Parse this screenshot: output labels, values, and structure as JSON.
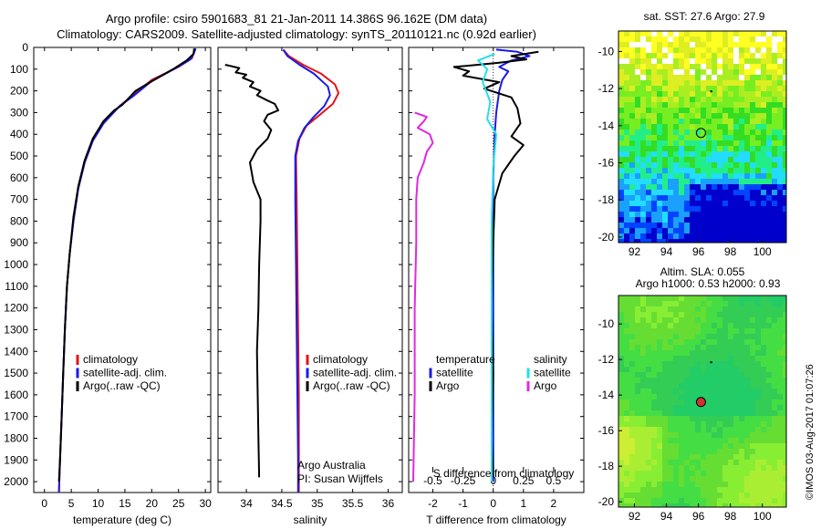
{
  "header": {
    "line1": "Argo profile: csiro 5901683_81 21-Jan-2011 14.386S 96.162E (DM data)",
    "line2": "Climatology: CARS2009. Satellite-adjusted climatology: synTS_20110121.nc (0.92d earlier)"
  },
  "colors": {
    "climatology": "#e0141a",
    "satellite": "#1a1ae6",
    "argo": "#000000",
    "cyan": "#22e0e6",
    "magenta": "#e028e0"
  },
  "depth_axis": {
    "range": [
      0,
      2050
    ],
    "ticks": [
      0,
      100,
      200,
      300,
      400,
      500,
      600,
      700,
      800,
      900,
      1000,
      1100,
      1200,
      1300,
      1400,
      1500,
      1600,
      1700,
      1800,
      1900,
      2000
    ]
  },
  "chart_data": [
    {
      "type": "line",
      "xlabel": "temperature (deg C)",
      "xlim": [
        -2,
        31
      ],
      "xticks": [
        0,
        5,
        10,
        15,
        20,
        25,
        30
      ],
      "ylim": [
        2050,
        0
      ],
      "legend": {
        "placement": "lower-middle",
        "entries": [
          "climatology",
          "satellite-adj. clim.",
          "Argo(..raw -QC)"
        ]
      },
      "series": [
        {
          "name": "climatology",
          "color_key": "climatology",
          "points": [
            [
              28.2,
              5
            ],
            [
              27.9,
              20
            ],
            [
              27.5,
              50
            ],
            [
              25,
              90
            ],
            [
              20,
              150
            ],
            [
              16,
              230
            ],
            [
              14,
              270
            ],
            [
              11,
              350
            ],
            [
              9,
              430
            ],
            [
              7.5,
              530
            ],
            [
              6.3,
              650
            ],
            [
              5.4,
              800
            ],
            [
              4.7,
              950
            ],
            [
              4.2,
              1100
            ],
            [
              3.8,
              1300
            ],
            [
              3.5,
              1500
            ],
            [
              3.2,
              1700
            ],
            [
              2.9,
              1900
            ],
            [
              2.7,
              2050
            ]
          ]
        },
        {
          "name": "satellite-adj. clim.",
          "color_key": "satellite",
          "points": [
            [
              28.2,
              5
            ],
            [
              27.8,
              30
            ],
            [
              27.2,
              55
            ],
            [
              24.5,
              95
            ],
            [
              20,
              155
            ],
            [
              16.5,
              225
            ],
            [
              14,
              270
            ],
            [
              11,
              350
            ],
            [
              9,
              430
            ],
            [
              7.5,
              530
            ],
            [
              6.3,
              650
            ],
            [
              5.4,
              800
            ],
            [
              4.7,
              950
            ],
            [
              4.2,
              1100
            ],
            [
              3.8,
              1300
            ],
            [
              3.5,
              1500
            ],
            [
              3.2,
              1700
            ],
            [
              2.9,
              1900
            ],
            [
              2.7,
              2050
            ]
          ]
        },
        {
          "name": "Argo(..raw -QC)",
          "color_key": "argo",
          "points": [
            [
              27.9,
              5
            ],
            [
              27.8,
              30
            ],
            [
              26.5,
              60
            ],
            [
              24,
              100
            ],
            [
              19,
              170
            ],
            [
              17,
              200
            ],
            [
              14.5,
              265
            ],
            [
              13,
              290
            ],
            [
              11,
              340
            ],
            [
              9,
              420
            ],
            [
              7.5,
              520
            ],
            [
              6.3,
              640
            ],
            [
              5.4,
              780
            ],
            [
              4.7,
              950
            ],
            [
              4.2,
              1100
            ],
            [
              3.8,
              1300
            ],
            [
              3.5,
              1500
            ],
            [
              3.2,
              1700
            ],
            [
              2.9,
              1900
            ],
            [
              2.7,
              2000
            ]
          ]
        }
      ]
    },
    {
      "type": "line",
      "xlabel": "salinity",
      "xlim": [
        33.6,
        36.2
      ],
      "xticks": [
        34,
        34.5,
        35,
        35.5,
        36
      ],
      "xticklabels": [
        "34",
        "34.5",
        "35",
        "35.5",
        "36"
      ],
      "ylim": [
        2050,
        0
      ],
      "legend": {
        "placement": "lower-middle",
        "entries": [
          "climatology",
          "satellite-adj. clim.",
          "Argo(..raw -QC)"
        ]
      },
      "annotations": [
        "Argo Australia",
        "PI: Susan Wijffels"
      ],
      "series": [
        {
          "name": "climatology",
          "color_key": "climatology",
          "points": [
            [
              34.52,
              10
            ],
            [
              34.6,
              40
            ],
            [
              34.8,
              80
            ],
            [
              35.05,
              120
            ],
            [
              35.25,
              170
            ],
            [
              35.3,
              210
            ],
            [
              35.22,
              260
            ],
            [
              35.0,
              320
            ],
            [
              34.85,
              360
            ],
            [
              34.75,
              420
            ],
            [
              34.7,
              500
            ],
            [
              34.71,
              700
            ],
            [
              34.72,
              1000
            ],
            [
              34.73,
              1300
            ],
            [
              34.74,
              1600
            ],
            [
              34.74,
              1900
            ],
            [
              34.74,
              2050
            ]
          ]
        },
        {
          "name": "satellite-adj. clim.",
          "color_key": "satellite",
          "points": [
            [
              34.52,
              10
            ],
            [
              34.58,
              40
            ],
            [
              34.75,
              80
            ],
            [
              34.95,
              120
            ],
            [
              35.15,
              180
            ],
            [
              35.18,
              220
            ],
            [
              35.1,
              270
            ],
            [
              34.95,
              320
            ],
            [
              34.82,
              370
            ],
            [
              34.73,
              430
            ],
            [
              34.69,
              500
            ],
            [
              34.69,
              700
            ],
            [
              34.7,
              1000
            ],
            [
              34.71,
              1300
            ],
            [
              34.72,
              1600
            ],
            [
              34.73,
              1900
            ],
            [
              34.73,
              2050
            ]
          ]
        },
        {
          "name": "Argo(..raw -QC)",
          "color_key": "argo",
          "points": [
            [
              33.7,
              80
            ],
            [
              33.9,
              95
            ],
            [
              33.85,
              115
            ],
            [
              34.0,
              125
            ],
            [
              33.95,
              140
            ],
            [
              34.1,
              160
            ],
            [
              34.05,
              180
            ],
            [
              34.2,
              200
            ],
            [
              34.15,
              220
            ],
            [
              34.3,
              245
            ],
            [
              34.4,
              260
            ],
            [
              34.45,
              290
            ],
            [
              34.3,
              310
            ],
            [
              34.25,
              340
            ],
            [
              34.35,
              380
            ],
            [
              34.3,
              420
            ],
            [
              34.15,
              470
            ],
            [
              34.05,
              530
            ],
            [
              34.1,
              620
            ],
            [
              34.2,
              700
            ],
            [
              34.2,
              800
            ],
            [
              34.18,
              1000
            ],
            [
              34.17,
              1200
            ],
            [
              34.15,
              1400
            ],
            [
              34.16,
              1600
            ],
            [
              34.17,
              1800
            ],
            [
              34.18,
              1980
            ]
          ]
        }
      ]
    },
    {
      "type": "line",
      "xlabel": "T difference from climatology",
      "x2label": "S difference from climatology",
      "xlim": [
        -2.8,
        3.0
      ],
      "xticks": [
        -2,
        -1,
        0,
        1,
        2
      ],
      "xticklabels": [
        "-2",
        "-1",
        "0",
        "1",
        "2"
      ],
      "x2ticks": [
        -2,
        -1,
        0,
        1,
        2
      ],
      "x2ticklabels": [
        "-0.5",
        "-0.25",
        "0",
        "0.25",
        "0.5"
      ],
      "ylim": [
        2050,
        0
      ],
      "legend": {
        "placement": "lower-middle",
        "headers": [
          "temperature",
          "salinity"
        ],
        "entries": [
          "satellite",
          "Argo",
          "satellite",
          "Argo"
        ]
      },
      "series": [
        {
          "name": "satellite",
          "group": "temperature",
          "color_key": "satellite",
          "points": [
            [
              0.1,
              10
            ],
            [
              0.8,
              20
            ],
            [
              1.2,
              40
            ],
            [
              0.6,
              60
            ],
            [
              0.2,
              90
            ],
            [
              0.5,
              110
            ],
            [
              0.3,
              150
            ],
            [
              0.2,
              200
            ],
            [
              0.1,
              300
            ],
            [
              0.05,
              400
            ],
            [
              0.0,
              600
            ],
            [
              0.0,
              1000
            ],
            [
              0.0,
              1500
            ],
            [
              0.0,
              2000
            ]
          ]
        },
        {
          "name": "Argo",
          "group": "temperature",
          "color_key": "argo",
          "points": [
            [
              1.5,
              20
            ],
            [
              0.6,
              40
            ],
            [
              1.1,
              55
            ],
            [
              0.2,
              70
            ],
            [
              -0.5,
              80
            ],
            [
              -1.3,
              90
            ],
            [
              -0.8,
              110
            ],
            [
              -1.0,
              130
            ],
            [
              0.2,
              160
            ],
            [
              -0.3,
              190
            ],
            [
              0.6,
              230
            ],
            [
              0.8,
              280
            ],
            [
              0.9,
              350
            ],
            [
              0.6,
              410
            ],
            [
              1.0,
              450
            ],
            [
              0.7,
              500
            ],
            [
              0.3,
              580
            ],
            [
              0.05,
              700
            ],
            [
              0.0,
              900
            ],
            [
              -0.05,
              1200
            ],
            [
              0.0,
              1500
            ],
            [
              -0.05,
              1800
            ],
            [
              0.0,
              1980
            ]
          ]
        },
        {
          "name": "satellite",
          "group": "salinity",
          "color_key": "cyan",
          "points": [
            [
              0.05,
              30
            ],
            [
              -0.5,
              60
            ],
            [
              -0.2,
              100
            ],
            [
              -0.35,
              160
            ],
            [
              -0.1,
              250
            ],
            [
              -0.2,
              330
            ],
            [
              0.1,
              400
            ],
            [
              0.0,
              550
            ],
            [
              -0.05,
              800
            ],
            [
              -0.05,
              1200
            ],
            [
              -0.05,
              1600
            ],
            [
              -0.05,
              2000
            ]
          ]
        },
        {
          "name": "Argo",
          "group": "salinity",
          "color_key": "magenta",
          "points": [
            [
              -2.6,
              300
            ],
            [
              -2.2,
              320
            ],
            [
              -2.3,
              340
            ],
            [
              -2.5,
              370
            ],
            [
              -2.1,
              400
            ],
            [
              -2.0,
              440
            ],
            [
              -2.2,
              480
            ],
            [
              -2.3,
              530
            ],
            [
              -2.5,
              600
            ],
            [
              -2.55,
              700
            ],
            [
              -2.55,
              900
            ],
            [
              -2.6,
              1200
            ],
            [
              -2.6,
              1600
            ],
            [
              -2.65,
              2000
            ]
          ]
        }
      ]
    }
  ],
  "map_sst": {
    "title": "sat. SST: 27.6 Argo: 27.9",
    "xticks": [
      92,
      94,
      96,
      98,
      100
    ],
    "yticks": [
      -10,
      -12,
      -14,
      -16,
      -18,
      -20
    ],
    "lon_range": [
      91,
      101.5
    ],
    "lat_range": [
      -20.3,
      -8.9
    ],
    "argo_position": [
      96.16,
      -14.39
    ],
    "colors": [
      "#0000cc",
      "#0044ff",
      "#1aa0ff",
      "#22ddff",
      "#22ee88",
      "#33dd22",
      "#77ee22",
      "#aaee22",
      "#ddee22",
      "#ffff22"
    ]
  },
  "map_sla": {
    "title1": "Altim. SLA: 0.055",
    "title2": "Argo h1000: 0.53 h2000: 0.93",
    "xticks": [
      92,
      94,
      96,
      98,
      100
    ],
    "yticks": [
      -10,
      -12,
      -14,
      -16,
      -18,
      -20
    ],
    "lon_range": [
      91,
      101.5
    ],
    "lat_range": [
      -20.3,
      -8.4
    ],
    "argo_position": [
      96.16,
      -14.39
    ],
    "marker_color": "#cc3333"
  },
  "stamp": "©IMOS 03-Aug-2017 01:07:26"
}
